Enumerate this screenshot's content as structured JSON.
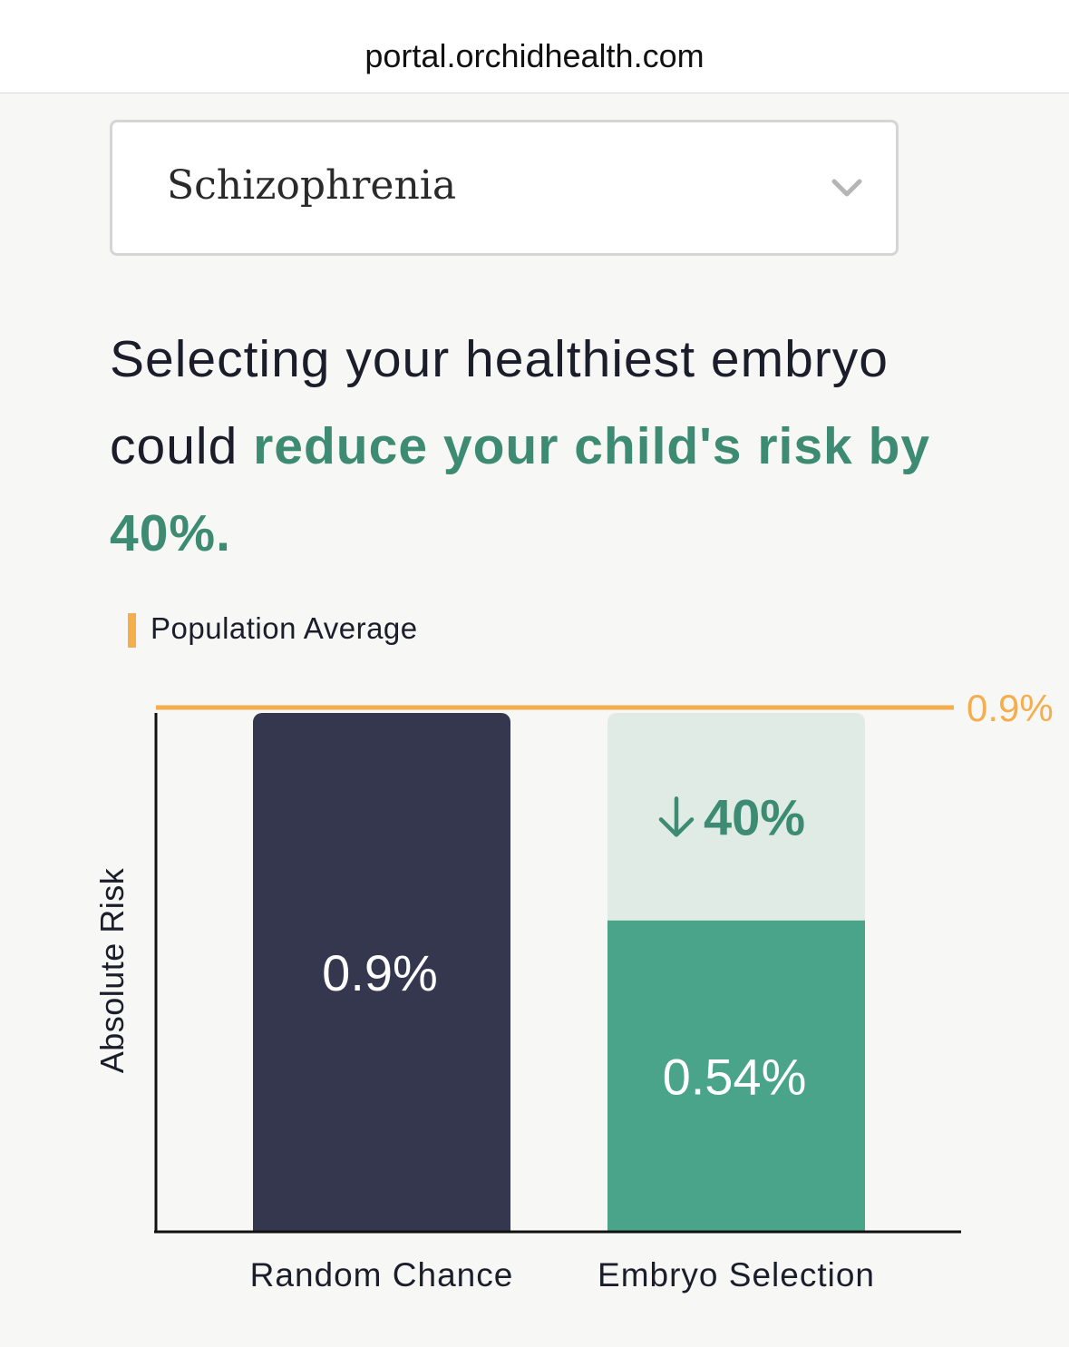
{
  "browser": {
    "url": "portal.orchidhealth.com"
  },
  "condition_select": {
    "value": "Schizophrenia",
    "icon": "chevron-down-icon"
  },
  "headline": {
    "prefix": "Selecting your healthiest embryo could ",
    "emphasis": "reduce your child's risk by 40%."
  },
  "legend": {
    "label": "Population Average",
    "color": "#f4ae4e"
  },
  "chart_data": {
    "type": "bar",
    "ylabel": "Absolute Risk",
    "xlabel": "",
    "categories": [
      "Random Chance",
      "Embryo Selection"
    ],
    "values": [
      0.9,
      0.54
    ],
    "value_labels": [
      "0.9%",
      "0.54%"
    ],
    "reference_line": {
      "name": "Population Average",
      "value": 0.9,
      "label": "0.9%"
    },
    "reduction_label": "40%",
    "ylim": [
      0,
      0.9
    ],
    "colors": {
      "random_chance": "#35374f",
      "embryo_selection": "#49a48a",
      "reduction": "#e0ebe6",
      "reduction_text": "#3d8b72",
      "reference": "#f4ae4e"
    },
    "grid": false,
    "legend_position": "top-left"
  }
}
